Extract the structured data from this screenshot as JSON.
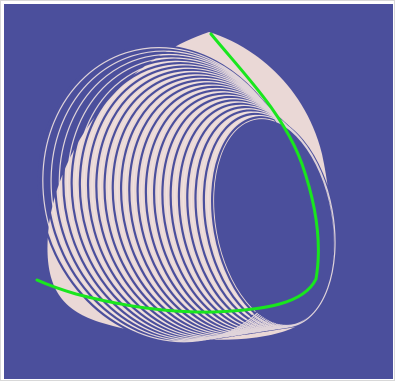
{
  "viewport": {
    "background_color": "#4B4F9C",
    "shell_color": "#EAD8D6",
    "shell_line_color": "#F1E3E1",
    "curve_color": "#19E61E",
    "content": "3d-shell-wireframe",
    "ring_count": 22
  }
}
